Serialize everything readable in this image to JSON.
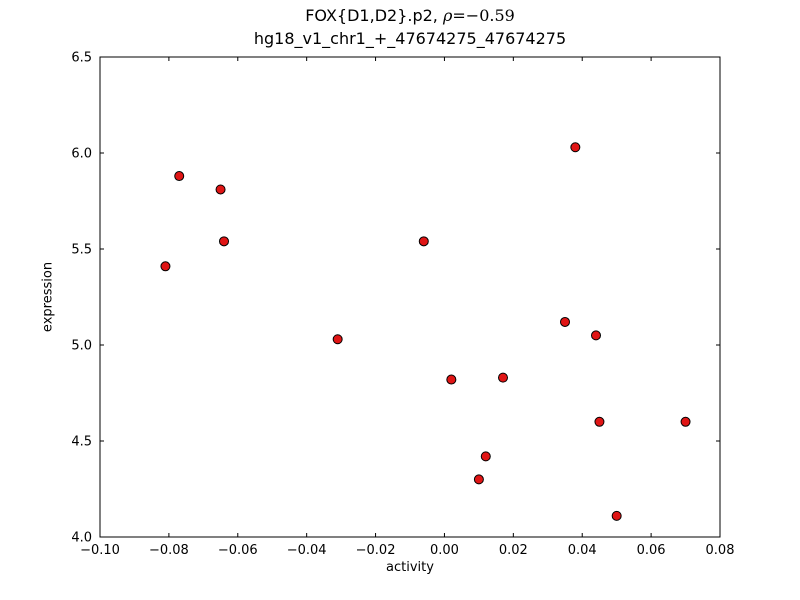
{
  "chart_data": {
    "type": "scatter",
    "title": "FOX{D1,D2}.p2, ρ=−0.59",
    "subtitle": "hg18_v1_chr1_+_47674275_47674275",
    "title_parts": {
      "prefix": "FOX{D1,D2}.p2, ",
      "rho": "ρ",
      "value": "=−0.59"
    },
    "xlabel": "activity",
    "ylabel": "expression",
    "xlim": [
      -0.1,
      0.08
    ],
    "ylim": [
      4.0,
      6.5
    ],
    "xticks": [
      -0.1,
      -0.08,
      -0.06,
      -0.04,
      -0.02,
      0.0,
      0.02,
      0.04,
      0.06,
      0.08
    ],
    "xtick_labels": [
      "−0.10",
      "−0.08",
      "−0.06",
      "−0.04",
      "−0.02",
      "0.00",
      "0.02",
      "0.04",
      "0.06",
      "0.08"
    ],
    "yticks": [
      4.0,
      4.5,
      5.0,
      5.5,
      6.0,
      6.5
    ],
    "ytick_labels": [
      "4.0",
      "4.5",
      "5.0",
      "5.5",
      "6.0",
      "6.5"
    ],
    "grid": false,
    "legend": null,
    "marker": {
      "fill": "#e01515",
      "edge": "#000000",
      "radius": 4.5
    },
    "points": [
      {
        "x": -0.081,
        "y": 5.41
      },
      {
        "x": -0.077,
        "y": 5.88
      },
      {
        "x": -0.065,
        "y": 5.81
      },
      {
        "x": -0.064,
        "y": 5.54
      },
      {
        "x": -0.031,
        "y": 5.03
      },
      {
        "x": -0.006,
        "y": 5.54
      },
      {
        "x": 0.002,
        "y": 4.82
      },
      {
        "x": 0.01,
        "y": 4.3
      },
      {
        "x": 0.012,
        "y": 4.42
      },
      {
        "x": 0.017,
        "y": 4.83
      },
      {
        "x": 0.035,
        "y": 5.12
      },
      {
        "x": 0.038,
        "y": 6.03
      },
      {
        "x": 0.044,
        "y": 5.05
      },
      {
        "x": 0.045,
        "y": 4.6
      },
      {
        "x": 0.05,
        "y": 4.11
      },
      {
        "x": 0.07,
        "y": 4.6
      }
    ]
  },
  "figure": {
    "background": "#ffffff"
  }
}
